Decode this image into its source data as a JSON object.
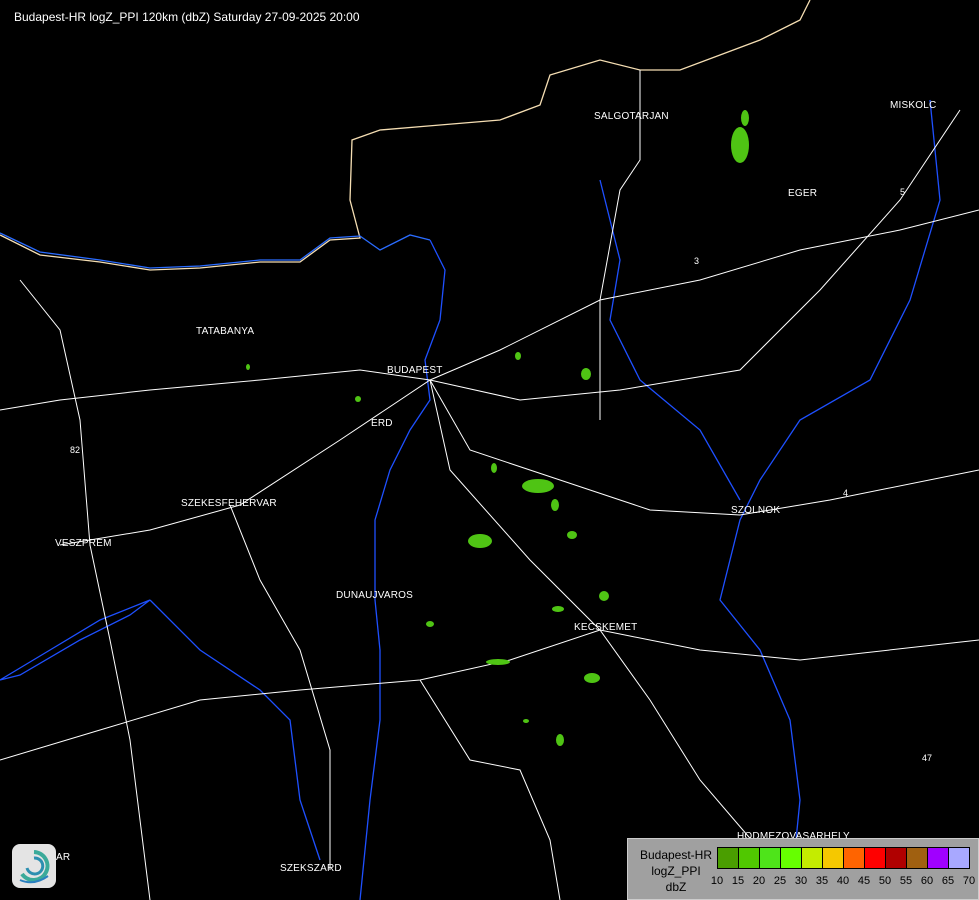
{
  "header": {
    "title": "Budapest-HR logZ_PPI 120km (dbZ) Saturday 27-09-2025 20:00"
  },
  "map": {
    "cities": [
      {
        "name": "SALGOTARJAN"
      },
      {
        "name": "MISKOLC"
      },
      {
        "name": "EGER"
      },
      {
        "name": "TATABANYA"
      },
      {
        "name": "BUDAPEST"
      },
      {
        "name": "ERD"
      },
      {
        "name": "SZEKESFEHERVAR"
      },
      {
        "name": "VESZPREM"
      },
      {
        "name": "DUNAUJVAROS"
      },
      {
        "name": "SZOLNOK"
      },
      {
        "name": "KECSKEMET"
      },
      {
        "name": "HODMEZOVASARHELY"
      },
      {
        "name": "SZEKSZARD"
      },
      {
        "name": "AR"
      }
    ],
    "roads": [
      "82",
      "3",
      "4",
      "47",
      "5"
    ],
    "colors": {
      "border": "#f5deb3",
      "rivers": "#1e50ff",
      "roads": "#ffffff",
      "echo": "#4fc414"
    }
  },
  "legend": {
    "line1": "Budapest-HR",
    "line2": "logZ_PPI",
    "line3": "dbZ",
    "colors": [
      "#4a9e00",
      "#50c800",
      "#4ee41a",
      "#66ff00",
      "#c4ec00",
      "#f5c800",
      "#ff6400",
      "#ff0000",
      "#b00000",
      "#a06010",
      "#a000ff",
      "#a8a8ff"
    ],
    "ticks": [
      "10",
      "15",
      "20",
      "25",
      "30",
      "35",
      "40",
      "45",
      "50",
      "55",
      "60",
      "65",
      "70"
    ]
  },
  "logo": {
    "name": "logo-icon"
  }
}
